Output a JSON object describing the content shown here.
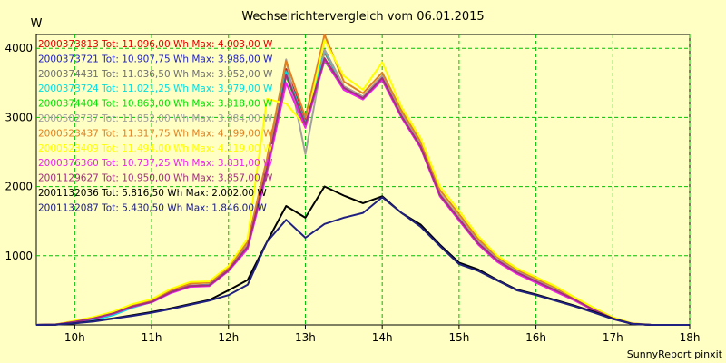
{
  "chart_data": {
    "type": "line",
    "title": "Wechselrichtervergleich vom 06.01.2015",
    "ylabel": "W",
    "footer": "SunnyReport pinxit",
    "grid": true,
    "legend_position": "top-left",
    "xlim": [
      9.5,
      18.0
    ],
    "ylim": [
      0,
      4200
    ],
    "xticks": [
      10,
      11,
      12,
      13,
      14,
      15,
      16,
      17,
      18
    ],
    "xtick_labels": [
      "10h",
      "11h",
      "12h",
      "13h",
      "14h",
      "15h",
      "16h",
      "17h",
      "18h"
    ],
    "yticks": [
      1000,
      2000,
      3000,
      4000
    ],
    "ytick_labels": [
      "1000",
      "2000",
      "3000",
      "4000"
    ],
    "x": [
      9.5,
      9.75,
      10.0,
      10.25,
      10.5,
      10.75,
      11.0,
      11.25,
      11.5,
      11.75,
      12.0,
      12.25,
      12.5,
      12.75,
      13.0,
      13.25,
      13.5,
      13.75,
      14.0,
      14.25,
      14.5,
      14.75,
      15.0,
      15.25,
      15.5,
      15.75,
      16.0,
      16.25,
      16.5,
      16.75,
      17.0,
      17.25,
      17.5,
      17.75,
      18.0
    ],
    "series": [
      {
        "name": "2000373813",
        "label": "2000373813 Tot: 11.096,00 Wh Max: 4.003,00 W",
        "color": "#e00000",
        "values": [
          0,
          5,
          50,
          100,
          170,
          270,
          340,
          480,
          570,
          580,
          800,
          1150,
          2300,
          3700,
          2950,
          3980,
          3450,
          3300,
          3600,
          3050,
          2600,
          1900,
          1550,
          1200,
          950,
          780,
          650,
          520,
          380,
          230,
          100,
          20,
          0,
          0,
          0
        ]
      },
      {
        "name": "2000373721",
        "label": "2000373721 Tot: 10.907,75 Wh Max: 3.986,00 W",
        "color": "#1e1ec8",
        "values": [
          0,
          5,
          45,
          95,
          165,
          265,
          330,
          470,
          560,
          570,
          790,
          1130,
          2250,
          3650,
          2900,
          3960,
          3430,
          3280,
          3580,
          3030,
          2580,
          1880,
          1530,
          1180,
          930,
          760,
          630,
          500,
          370,
          220,
          95,
          18,
          0,
          0,
          0
        ]
      },
      {
        "name": "2000374431",
        "label": "2000374431 Tot: 11.036,50 Wh Max: 3.952,00 W",
        "color": "#707070",
        "values": [
          0,
          5,
          48,
          98,
          168,
          268,
          336,
          476,
          566,
          576,
          796,
          1146,
          2280,
          3680,
          2920,
          3940,
          3440,
          3290,
          3590,
          3040,
          2590,
          1890,
          1540,
          1190,
          940,
          770,
          640,
          510,
          375,
          225,
          97,
          19,
          0,
          0,
          0
        ]
      },
      {
        "name": "2000373724",
        "label": "2000373724 Tot: 11.021,25 Wh Max: 3.979,00 W",
        "color": "#00e0e0",
        "values": [
          0,
          5,
          30,
          70,
          140,
          250,
          330,
          470,
          560,
          580,
          790,
          1140,
          2270,
          3660,
          2910,
          3970,
          3440,
          3290,
          3590,
          3040,
          2590,
          1890,
          1540,
          1190,
          940,
          770,
          640,
          510,
          370,
          220,
          95,
          18,
          0,
          0,
          0
        ]
      },
      {
        "name": "2000374404",
        "label": "2000374404 Tot: 10.863,00 Wh Max: 3.818,00 W",
        "color": "#00e000",
        "values": [
          0,
          5,
          45,
          95,
          165,
          265,
          330,
          470,
          560,
          570,
          790,
          1120,
          2240,
          3600,
          2880,
          3820,
          3420,
          3270,
          3560,
          3010,
          2570,
          1870,
          1520,
          1170,
          920,
          750,
          620,
          490,
          360,
          215,
          90,
          17,
          0,
          0,
          0
        ]
      },
      {
        "name": "2000502737",
        "label": "2000502737 Tot: 11.052,00 Wh Max: 3.984,00 W",
        "color": "#a0a0a0",
        "values": [
          0,
          5,
          48,
          98,
          168,
          268,
          336,
          476,
          566,
          576,
          796,
          1146,
          2300,
          3840,
          2470,
          3984,
          3450,
          3300,
          3600,
          3050,
          2600,
          1900,
          1550,
          1200,
          950,
          780,
          650,
          520,
          380,
          230,
          100,
          20,
          0,
          0,
          0
        ]
      },
      {
        "name": "2000523437",
        "label": "2000523437 Tot: 11.317,75 Wh Max: 4.199,00 W",
        "color": "#e08020",
        "values": [
          0,
          6,
          55,
          110,
          180,
          290,
          360,
          500,
          600,
          610,
          830,
          1200,
          2400,
          3820,
          3000,
          4199,
          3520,
          3350,
          3650,
          3100,
          2650,
          1950,
          1600,
          1240,
          980,
          800,
          670,
          540,
          390,
          240,
          105,
          22,
          0,
          0,
          0
        ]
      },
      {
        "name": "2000523409",
        "label": "2000523409 Tot: 11.494,00 Wh Max: 4.119,00 W",
        "color": "#ffff00",
        "values": [
          0,
          6,
          60,
          115,
          190,
          300,
          370,
          520,
          620,
          630,
          850,
          1250,
          3270,
          3200,
          2880,
          4119,
          3600,
          3400,
          3800,
          3150,
          2700,
          2000,
          1650,
          1280,
          1000,
          820,
          690,
          560,
          400,
          250,
          110,
          24,
          0,
          0,
          0
        ]
      },
      {
        "name": "2000376360",
        "label": "2000376360 Tot: 10.737,25 Wh Max: 3.831,00 W",
        "color": "#f020f0",
        "values": [
          0,
          5,
          42,
          90,
          160,
          260,
          325,
          460,
          550,
          560,
          780,
          1100,
          2200,
          3500,
          2850,
          3831,
          3400,
          3260,
          3540,
          3000,
          2560,
          1860,
          1510,
          1160,
          910,
          740,
          610,
          480,
          355,
          210,
          88,
          16,
          0,
          0,
          0
        ]
      },
      {
        "name": "2001129627",
        "label": "2001129627 Tot: 10.950,00 Wh Max: 3.857,00 W",
        "color": "#a0307a",
        "values": [
          0,
          5,
          46,
          96,
          166,
          266,
          332,
          472,
          562,
          572,
          792,
          1130,
          2260,
          3620,
          2900,
          3857,
          3430,
          3280,
          3570,
          3020,
          2580,
          1880,
          1530,
          1180,
          930,
          760,
          630,
          500,
          368,
          220,
          94,
          18,
          0,
          0,
          0
        ]
      },
      {
        "name": "2001132036",
        "label": "2001132036 Tot: 5.816,50 Wh Max: 2.002,00 W",
        "color": "#000000",
        "values": [
          0,
          3,
          25,
          55,
          95,
          140,
          185,
          240,
          300,
          360,
          500,
          650,
          1200,
          1720,
          1550,
          2002,
          1870,
          1760,
          1860,
          1620,
          1450,
          1160,
          900,
          800,
          650,
          510,
          440,
          360,
          280,
          190,
          90,
          15,
          0,
          0,
          0
        ]
      },
      {
        "name": "2001132087",
        "label": "2001132087 Tot: 5.430,50 Wh Max: 1.846,00 W",
        "color": "#202080",
        "values": [
          0,
          3,
          22,
          50,
          90,
          130,
          175,
          230,
          290,
          350,
          430,
          580,
          1200,
          1520,
          1260,
          1460,
          1550,
          1620,
          1846,
          1620,
          1420,
          1140,
          880,
          780,
          640,
          500,
          430,
          350,
          270,
          180,
          85,
          14,
          0,
          0,
          0
        ]
      }
    ]
  }
}
